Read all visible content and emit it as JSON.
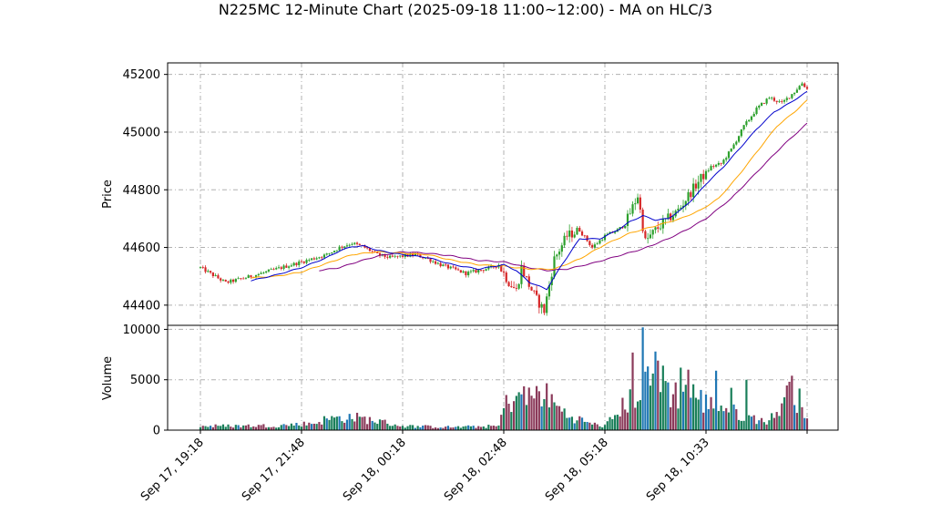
{
  "chart_data": {
    "type": "candlestick",
    "title": "N225MC 12-Minute Chart (2025-09-18 11:00~12:00) - MA on HLC/3",
    "price_panel": {
      "ylabel": "Price",
      "ylim": [
        44330,
        45240
      ],
      "yticks": [
        44400,
        44600,
        44800,
        45000,
        45200
      ],
      "grid": true
    },
    "volume_panel": {
      "ylabel": "Volume",
      "ylim": [
        0,
        10400
      ],
      "yticks": [
        0,
        5000,
        10000
      ],
      "grid": true
    },
    "x_ticks": [
      {
        "label": "Sep 17, 19:18",
        "index": 0
      },
      {
        "label": "Sep 17, 21:48",
        "index": 40
      },
      {
        "label": "Sep 18, 00:18",
        "index": 80
      },
      {
        "label": "Sep 18, 02:48",
        "index": 120
      },
      {
        "label": "Sep 18, 05:18",
        "index": 160
      },
      {
        "label": "Sep 18, 10:33",
        "index": 200
      },
      {
        "label": "",
        "index": 240
      }
    ],
    "bar_count": 241,
    "price_path": [
      [
        0,
        44530
      ],
      [
        10,
        44478
      ],
      [
        20,
        44500
      ],
      [
        30,
        44525
      ],
      [
        40,
        44550
      ],
      [
        50,
        44575
      ],
      [
        55,
        44600
      ],
      [
        60,
        44615
      ],
      [
        65,
        44600
      ],
      [
        70,
        44575
      ],
      [
        75,
        44565
      ],
      [
        80,
        44570
      ],
      [
        85,
        44575
      ],
      [
        90,
        44560
      ],
      [
        95,
        44540
      ],
      [
        100,
        44525
      ],
      [
        105,
        44510
      ],
      [
        110,
        44520
      ],
      [
        115,
        44530
      ],
      [
        118,
        44540
      ],
      [
        122,
        44480
      ],
      [
        125,
        44450
      ],
      [
        127,
        44530
      ],
      [
        130,
        44470
      ],
      [
        133,
        44420
      ],
      [
        136,
        44380
      ],
      [
        140,
        44560
      ],
      [
        145,
        44640
      ],
      [
        150,
        44660
      ],
      [
        155,
        44600
      ],
      [
        160,
        44640
      ],
      [
        165,
        44660
      ],
      [
        168,
        44680
      ],
      [
        170,
        44720
      ],
      [
        173,
        44780
      ],
      [
        176,
        44620
      ],
      [
        180,
        44660
      ],
      [
        185,
        44700
      ],
      [
        188,
        44720
      ],
      [
        190,
        44740
      ],
      [
        193,
        44780
      ],
      [
        198,
        44840
      ],
      [
        202,
        44880
      ],
      [
        206,
        44890
      ],
      [
        210,
        44940
      ],
      [
        215,
        45020
      ],
      [
        220,
        45080
      ],
      [
        225,
        45120
      ],
      [
        230,
        45100
      ],
      [
        235,
        45140
      ],
      [
        238,
        45170
      ],
      [
        240,
        45150
      ]
    ],
    "ma_short_path": [
      [
        20,
        44485
      ],
      [
        30,
        44505
      ],
      [
        40,
        44530
      ],
      [
        50,
        44565
      ],
      [
        55,
        44588
      ],
      [
        60,
        44603
      ],
      [
        65,
        44605
      ],
      [
        70,
        44590
      ],
      [
        80,
        44575
      ],
      [
        90,
        44565
      ],
      [
        100,
        44540
      ],
      [
        110,
        44525
      ],
      [
        120,
        44540
      ],
      [
        125,
        44520
      ],
      [
        130,
        44480
      ],
      [
        137,
        44455
      ],
      [
        143,
        44540
      ],
      [
        150,
        44630
      ],
      [
        158,
        44630
      ],
      [
        165,
        44660
      ],
      [
        170,
        44690
      ],
      [
        175,
        44710
      ],
      [
        180,
        44695
      ],
      [
        185,
        44700
      ],
      [
        190,
        44730
      ],
      [
        195,
        44770
      ],
      [
        200,
        44820
      ],
      [
        207,
        44880
      ],
      [
        213,
        44940
      ],
      [
        220,
        45010
      ],
      [
        227,
        45070
      ],
      [
        233,
        45100
      ],
      [
        240,
        45140
      ]
    ],
    "ma_mid_path": [
      [
        20,
        44495
      ],
      [
        30,
        44500
      ],
      [
        40,
        44515
      ],
      [
        50,
        44545
      ],
      [
        60,
        44575
      ],
      [
        70,
        44585
      ],
      [
        80,
        44580
      ],
      [
        90,
        44575
      ],
      [
        100,
        44555
      ],
      [
        110,
        44540
      ],
      [
        120,
        44535
      ],
      [
        130,
        44525
      ],
      [
        140,
        44525
      ],
      [
        150,
        44560
      ],
      [
        160,
        44610
      ],
      [
        170,
        44650
      ],
      [
        180,
        44675
      ],
      [
        190,
        44700
      ],
      [
        198,
        44730
      ],
      [
        205,
        44770
      ],
      [
        212,
        44840
      ],
      [
        220,
        44930
      ],
      [
        228,
        45020
      ],
      [
        235,
        45070
      ],
      [
        240,
        45110
      ]
    ],
    "ma_long_path": [
      [
        47,
        44520
      ],
      [
        55,
        44530
      ],
      [
        62,
        44550
      ],
      [
        70,
        44570
      ],
      [
        80,
        44585
      ],
      [
        90,
        44580
      ],
      [
        100,
        44570
      ],
      [
        110,
        44555
      ],
      [
        120,
        44550
      ],
      [
        130,
        44530
      ],
      [
        137,
        44520
      ],
      [
        145,
        44525
      ],
      [
        155,
        44545
      ],
      [
        165,
        44570
      ],
      [
        175,
        44595
      ],
      [
        185,
        44630
      ],
      [
        192,
        44660
      ],
      [
        200,
        44700
      ],
      [
        210,
        44770
      ],
      [
        220,
        44860
      ],
      [
        230,
        44950
      ],
      [
        240,
        45030
      ]
    ],
    "volume_profile": [
      [
        0,
        400
      ],
      [
        30,
        450
      ],
      [
        40,
        600
      ],
      [
        45,
        700
      ],
      [
        50,
        1100
      ],
      [
        60,
        1300
      ],
      [
        70,
        900
      ],
      [
        80,
        400
      ],
      [
        100,
        300
      ],
      [
        118,
        400
      ],
      [
        120,
        2300
      ],
      [
        125,
        3500
      ],
      [
        130,
        3200
      ],
      [
        135,
        3800
      ],
      [
        140,
        2600
      ],
      [
        145,
        1500
      ],
      [
        155,
        600
      ],
      [
        160,
        400
      ],
      [
        172,
        3600
      ],
      [
        178,
        4700
      ],
      [
        183,
        4200
      ],
      [
        190,
        3300
      ],
      [
        195,
        3600
      ],
      [
        200,
        2600
      ],
      [
        205,
        2500
      ],
      [
        210,
        1900
      ],
      [
        215,
        1400
      ],
      [
        220,
        1100
      ],
      [
        225,
        900
      ],
      [
        230,
        2500
      ],
      [
        233,
        3600
      ],
      [
        237,
        2900
      ],
      [
        240,
        1500
      ]
    ],
    "volume_spikes": [
      [
        171,
        7700
      ],
      [
        175,
        10200
      ],
      [
        176,
        5800
      ],
      [
        180,
        7800
      ],
      [
        181,
        6900
      ],
      [
        183,
        6400
      ],
      [
        190,
        6200
      ],
      [
        192,
        4500
      ],
      [
        193,
        6000
      ],
      [
        204,
        5900
      ],
      [
        210,
        4200
      ],
      [
        216,
        5000
      ],
      [
        233,
        4800
      ],
      [
        234,
        5400
      ]
    ],
    "colors": {
      "up": "#2ca02c",
      "down": "#d62728",
      "ma_short": "#0000cc",
      "ma_mid": "#ffa500",
      "ma_long": "#800080",
      "vol_up": "#1a7f5a",
      "vol_down": "#8b3a5a",
      "vol_neutral": "#1f77b4"
    }
  }
}
